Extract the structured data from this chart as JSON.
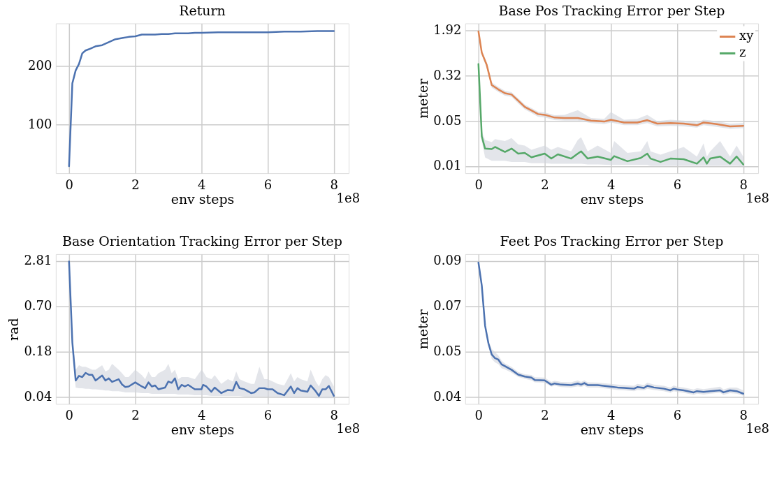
{
  "chart_data": [
    {
      "type": "line",
      "title": "Return",
      "xlabel": "env steps",
      "xlim": [
        -0.4,
        8.45
      ],
      "xticks": [
        0,
        2,
        4,
        6,
        8
      ],
      "ylim": [
        17,
        272
      ],
      "yticks": [
        100,
        200
      ],
      "grid": true,
      "annotations": [
        "1e8"
      ],
      "series": [
        {
          "color": "#4c72b0",
          "x": [
            0,
            0.1,
            0.2,
            0.3,
            0.4,
            0.5,
            0.6,
            0.8,
            1.0,
            1.2,
            1.4,
            1.6,
            1.8,
            2.0,
            2.2,
            2.4,
            2.6,
            2.8,
            3.0,
            3.2,
            3.6,
            3.8,
            4.0,
            4.5,
            5.0,
            5.2,
            5.5,
            6.0,
            6.5,
            7.0,
            7.5,
            8.0
          ],
          "values": [
            29,
            170,
            192,
            203,
            221,
            226,
            228,
            233,
            235,
            240,
            245,
            247,
            249,
            250,
            253,
            253,
            253,
            254,
            254,
            255,
            255,
            256,
            256,
            257,
            257,
            257,
            257,
            257,
            258,
            258,
            259,
            259
          ]
        }
      ]
    },
    {
      "type": "line",
      "title": "Base Pos Tracking Error per Step",
      "xlabel": "env steps",
      "ylabel": "meter",
      "xlim": [
        -0.4,
        8.45
      ],
      "xticks": [
        0,
        2,
        4,
        6,
        8
      ],
      "ylim": [
        0.0067,
        2.55
      ],
      "log": true,
      "yticks": [
        1.92,
        0.32,
        {
          "value": 0.0533,
          "label": "0.05"
        },
        {
          "value": 0.0089,
          "label": "0.01"
        }
      ],
      "grid": true,
      "legend": "top right",
      "annotations": [
        "1e8"
      ],
      "series": [
        {
          "name": "xy",
          "color": "#dd8452",
          "x": [
            0,
            0.1,
            0.25,
            0.4,
            0.6,
            0.8,
            1.0,
            1.2,
            1.4,
            1.6,
            1.8,
            2.0,
            2.3,
            2.6,
            3.0,
            3.4,
            3.8,
            4.0,
            4.4,
            4.8,
            5.1,
            5.4,
            5.8,
            6.2,
            6.6,
            6.8,
            7.2,
            7.6,
            8.0
          ],
          "values": [
            1.86,
            0.8,
            0.49,
            0.222,
            0.186,
            0.16,
            0.152,
            0.119,
            0.093,
            0.081,
            0.07,
            0.068,
            0.061,
            0.06,
            0.06,
            0.054,
            0.052,
            0.056,
            0.05,
            0.05,
            0.055,
            0.048,
            0.049,
            0.048,
            0.045,
            0.05,
            0.047,
            0.043,
            0.044
          ],
          "lower": [
            1.7,
            0.72,
            0.44,
            0.2,
            0.168,
            0.145,
            0.138,
            0.107,
            0.084,
            0.073,
            0.063,
            0.061,
            0.055,
            0.054,
            0.054,
            0.049,
            0.047,
            0.05,
            0.045,
            0.045,
            0.049,
            0.043,
            0.044,
            0.043,
            0.041,
            0.045,
            0.042,
            0.039,
            0.04
          ],
          "upper": [
            2.0,
            0.88,
            0.54,
            0.245,
            0.205,
            0.176,
            0.167,
            0.131,
            0.102,
            0.089,
            0.077,
            0.075,
            0.067,
            0.068,
            0.082,
            0.06,
            0.058,
            0.076,
            0.056,
            0.058,
            0.068,
            0.053,
            0.056,
            0.054,
            0.05,
            0.056,
            0.053,
            0.048,
            0.049
          ]
        },
        {
          "name": "z",
          "color": "#55a868",
          "x": [
            0,
            0.1,
            0.2,
            0.4,
            0.5,
            0.8,
            1.0,
            1.2,
            1.4,
            1.6,
            2.0,
            2.2,
            2.4,
            2.8,
            3.0,
            3.1,
            3.3,
            3.6,
            4.0,
            4.1,
            4.5,
            4.9,
            5.1,
            5.2,
            5.5,
            5.8,
            6.2,
            6.6,
            6.8,
            6.9,
            7.0,
            7.3,
            7.6,
            7.8,
            8.0
          ],
          "values": [
            0.51,
            0.029,
            0.0178,
            0.0175,
            0.019,
            0.0156,
            0.0178,
            0.0146,
            0.015,
            0.0126,
            0.0146,
            0.012,
            0.0142,
            0.012,
            0.0146,
            0.016,
            0.012,
            0.013,
            0.0114,
            0.0132,
            0.0108,
            0.0123,
            0.0146,
            0.012,
            0.0105,
            0.012,
            0.0117,
            0.0098,
            0.0126,
            0.0098,
            0.012,
            0.013,
            0.0098,
            0.013,
            0.0095
          ],
          "lower": [
            0.45,
            0.024,
            0.0125,
            0.011,
            0.011,
            0.011,
            0.0105,
            0.0105,
            0.0105,
            0.01,
            0.01,
            0.0098,
            0.0098,
            0.0098,
            0.0098,
            0.0098,
            0.0095,
            0.0095,
            0.0093,
            0.0093,
            0.0093,
            0.0093,
            0.0093,
            0.009,
            0.009,
            0.009,
            0.009,
            0.009,
            0.009,
            0.009,
            0.009,
            0.009,
            0.009,
            0.009,
            0.0088
          ],
          "upper": [
            0.57,
            0.035,
            0.025,
            0.023,
            0.026,
            0.024,
            0.027,
            0.021,
            0.02,
            0.017,
            0.02,
            0.017,
            0.019,
            0.016,
            0.025,
            0.028,
            0.016,
            0.02,
            0.015,
            0.024,
            0.015,
            0.016,
            0.024,
            0.016,
            0.014,
            0.016,
            0.019,
            0.013,
            0.022,
            0.013,
            0.016,
            0.024,
            0.013,
            0.02,
            0.013
          ]
        }
      ]
    },
    {
      "type": "line",
      "title": "Base Orientation Tracking Error per Step",
      "xlabel": "env steps",
      "ylabel": "rad",
      "xlim": [
        -0.4,
        8.45
      ],
      "xticks": [
        0,
        2,
        4,
        6,
        8
      ],
      "ylim": [
        0.0351,
        3.47
      ],
      "log": true,
      "yticks": [
        2.81,
        {
          "value": 0.7025,
          "label": "0.70"
        },
        {
          "value": 0.1756,
          "label": "0.18"
        },
        {
          "value": 0.0439,
          "label": "0.04"
        }
      ],
      "grid": true,
      "annotations": [
        "1e8"
      ],
      "series": [
        {
          "color": "#4c72b0",
          "x": [
            0,
            0.1,
            0.2,
            0.3,
            0.4,
            0.5,
            0.6,
            0.7,
            0.8,
            1.0,
            1.1,
            1.2,
            1.3,
            1.5,
            1.6,
            1.7,
            1.8,
            2.0,
            2.2,
            2.3,
            2.4,
            2.5,
            2.6,
            2.7,
            2.9,
            3.0,
            3.1,
            3.2,
            3.3,
            3.4,
            3.5,
            3.6,
            3.8,
            4.0,
            4.05,
            4.15,
            4.3,
            4.4,
            4.6,
            4.8,
            4.95,
            5.05,
            5.15,
            5.3,
            5.5,
            5.6,
            5.75,
            5.9,
            6.0,
            6.15,
            6.3,
            6.5,
            6.7,
            6.8,
            6.9,
            7.0,
            7.2,
            7.3,
            7.45,
            7.55,
            7.65,
            7.75,
            7.85,
            8.0
          ],
          "values": [
            2.76,
            0.232,
            0.072,
            0.083,
            0.08,
            0.091,
            0.086,
            0.086,
            0.072,
            0.084,
            0.072,
            0.077,
            0.069,
            0.075,
            0.064,
            0.059,
            0.06,
            0.068,
            0.06,
            0.057,
            0.068,
            0.06,
            0.062,
            0.055,
            0.058,
            0.07,
            0.067,
            0.077,
            0.055,
            0.063,
            0.06,
            0.063,
            0.055,
            0.055,
            0.063,
            0.06,
            0.051,
            0.058,
            0.049,
            0.054,
            0.053,
            0.069,
            0.057,
            0.055,
            0.049,
            0.05,
            0.057,
            0.057,
            0.055,
            0.055,
            0.049,
            0.046,
            0.06,
            0.049,
            0.057,
            0.053,
            0.051,
            0.062,
            0.052,
            0.045,
            0.055,
            0.055,
            0.061,
            0.045
          ],
          "lower": [
            2.6,
            0.2,
            0.058,
            0.057,
            0.057,
            0.056,
            0.056,
            0.055,
            0.055,
            0.054,
            0.053,
            0.053,
            0.052,
            0.052,
            0.051,
            0.05,
            0.05,
            0.05,
            0.049,
            0.049,
            0.049,
            0.048,
            0.048,
            0.048,
            0.048,
            0.048,
            0.048,
            0.048,
            0.047,
            0.047,
            0.047,
            0.047,
            0.046,
            0.046,
            0.046,
            0.046,
            0.045,
            0.045,
            0.045,
            0.045,
            0.045,
            0.045,
            0.045,
            0.044,
            0.044,
            0.044,
            0.044,
            0.044,
            0.044,
            0.044,
            0.043,
            0.043,
            0.043,
            0.043,
            0.043,
            0.043,
            0.043,
            0.043,
            0.042,
            0.042,
            0.042,
            0.042,
            0.042,
            0.042
          ],
          "upper": [
            2.9,
            0.27,
            0.1,
            0.115,
            0.11,
            0.11,
            0.105,
            0.1,
            0.1,
            0.115,
            0.095,
            0.1,
            0.12,
            0.1,
            0.09,
            0.08,
            0.08,
            0.1,
            0.085,
            0.075,
            0.095,
            0.08,
            0.08,
            0.09,
            0.1,
            0.12,
            0.09,
            0.1,
            0.075,
            0.08,
            0.08,
            0.08,
            0.075,
            0.1,
            0.095,
            0.08,
            0.075,
            0.085,
            0.065,
            0.075,
            0.07,
            0.095,
            0.075,
            0.07,
            0.065,
            0.065,
            0.11,
            0.075,
            0.075,
            0.07,
            0.065,
            0.062,
            0.09,
            0.07,
            0.08,
            0.075,
            0.07,
            0.1,
            0.07,
            0.06,
            0.075,
            0.085,
            0.08,
            0.06
          ]
        }
      ]
    },
    {
      "type": "line",
      "title": "Feet Pos Tracking Error per Step",
      "xlabel": "env steps",
      "ylabel": "meter",
      "xlim": [
        -0.4,
        8.45
      ],
      "xticks": [
        0,
        2,
        4,
        6,
        8
      ],
      "ylim": [
        0.0389,
        0.0926
      ],
      "log": true,
      "yticks": [
        {
          "value": 0.089,
          "label": "0.09"
        },
        {
          "value": 0.0685,
          "label": "0.07"
        },
        {
          "value": 0.0527,
          "label": "0.05"
        },
        {
          "value": 0.0405,
          "label": "0.04"
        }
      ],
      "grid": true,
      "annotations": [
        "1e8"
      ],
      "series": [
        {
          "color": "#4c72b0",
          "x": [
            0,
            0.1,
            0.2,
            0.3,
            0.4,
            0.5,
            0.6,
            0.7,
            0.8,
            1.0,
            1.2,
            1.4,
            1.6,
            1.7,
            2.0,
            2.2,
            2.3,
            2.5,
            2.8,
            3.0,
            3.1,
            3.2,
            3.3,
            3.6,
            4.0,
            4.2,
            4.4,
            4.7,
            4.8,
            5.0,
            5.1,
            5.3,
            5.6,
            5.8,
            5.9,
            6.0,
            6.2,
            6.5,
            6.6,
            6.8,
            7.0,
            7.3,
            7.4,
            7.6,
            7.8,
            8.0
          ],
          "values": [
            0.0882,
            0.0772,
            0.0612,
            0.0553,
            0.0518,
            0.0507,
            0.0503,
            0.0489,
            0.0484,
            0.0474,
            0.0461,
            0.0456,
            0.0453,
            0.0447,
            0.0446,
            0.0435,
            0.0438,
            0.0435,
            0.0434,
            0.0438,
            0.0435,
            0.0439,
            0.0434,
            0.0434,
            0.043,
            0.0428,
            0.0427,
            0.0425,
            0.0429,
            0.0427,
            0.0432,
            0.0428,
            0.0425,
            0.0421,
            0.0425,
            0.0423,
            0.0421,
            0.0416,
            0.0419,
            0.0417,
            0.0419,
            0.0421,
            0.0416,
            0.0421,
            0.0419,
            0.0413
          ],
          "lower": [
            0.0875,
            0.0765,
            0.0605,
            0.0545,
            0.0505,
            0.0495,
            0.049,
            0.0478,
            0.0475,
            0.0466,
            0.0455,
            0.045,
            0.0446,
            0.0441,
            0.044,
            0.043,
            0.0432,
            0.0429,
            0.0428,
            0.0431,
            0.0429,
            0.0432,
            0.0428,
            0.0428,
            0.0424,
            0.0422,
            0.0421,
            0.0419,
            0.0422,
            0.0421,
            0.0425,
            0.0422,
            0.0419,
            0.0415,
            0.0419,
            0.0417,
            0.0415,
            0.041,
            0.0413,
            0.0411,
            0.0413,
            0.0415,
            0.041,
            0.0414,
            0.0413,
            0.0408
          ],
          "upper": [
            0.089,
            0.078,
            0.062,
            0.0562,
            0.0535,
            0.0525,
            0.0515,
            0.05,
            0.0492,
            0.0482,
            0.0468,
            0.0462,
            0.046,
            0.0454,
            0.0453,
            0.0442,
            0.0445,
            0.0442,
            0.0441,
            0.0446,
            0.0442,
            0.0446,
            0.0441,
            0.044,
            0.0437,
            0.0435,
            0.0434,
            0.0432,
            0.0437,
            0.0434,
            0.044,
            0.0435,
            0.0432,
            0.0428,
            0.0433,
            0.043,
            0.0428,
            0.0423,
            0.0426,
            0.0424,
            0.0426,
            0.043,
            0.0423,
            0.0428,
            0.0428,
            0.0421
          ]
        }
      ]
    }
  ]
}
